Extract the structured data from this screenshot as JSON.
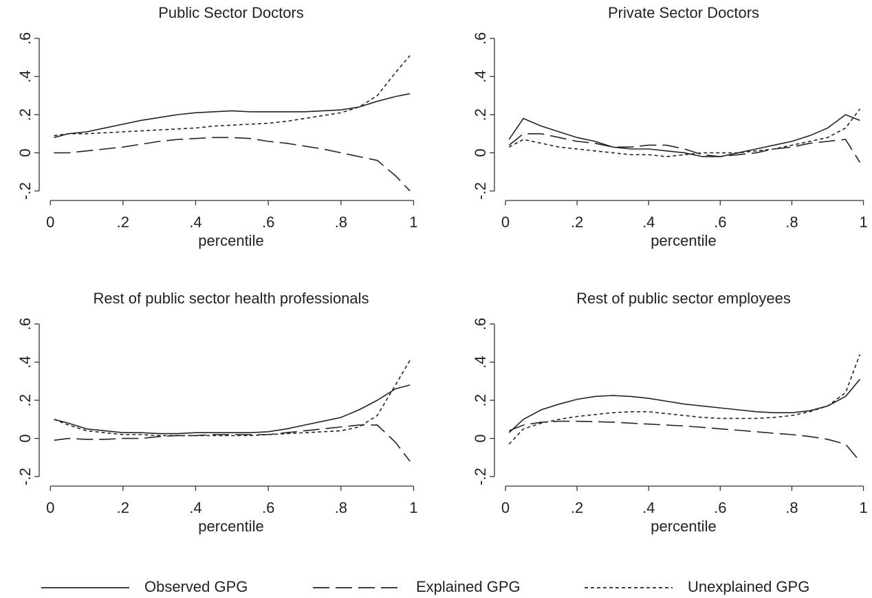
{
  "chart_data": [
    {
      "type": "line",
      "title": "Public Sector Doctors",
      "xlabel": "percentile",
      "x": [
        0.01,
        0.05,
        0.1,
        0.15,
        0.2,
        0.25,
        0.3,
        0.35,
        0.4,
        0.45,
        0.5,
        0.55,
        0.6,
        0.65,
        0.7,
        0.75,
        0.8,
        0.85,
        0.9,
        0.95,
        0.99
      ],
      "series": [
        {
          "values": [
            0.08,
            0.1,
            0.11,
            0.13,
            0.15,
            0.17,
            0.185,
            0.2,
            0.21,
            0.215,
            0.22,
            0.215,
            0.215,
            0.215,
            0.215,
            0.22,
            0.225,
            0.24,
            0.27,
            0.295,
            0.31
          ]
        },
        {
          "values": [
            0.0,
            0.0,
            0.01,
            0.02,
            0.03,
            0.045,
            0.06,
            0.07,
            0.075,
            0.08,
            0.08,
            0.075,
            0.06,
            0.05,
            0.035,
            0.02,
            0.0,
            -0.02,
            -0.04,
            -0.12,
            -0.2
          ]
        },
        {
          "values": [
            0.09,
            0.1,
            0.1,
            0.105,
            0.11,
            0.115,
            0.12,
            0.125,
            0.13,
            0.14,
            0.145,
            0.15,
            0.155,
            0.165,
            0.18,
            0.195,
            0.21,
            0.24,
            0.3,
            0.42,
            0.51
          ]
        }
      ],
      "xlim": [
        -0.025,
        1.02
      ],
      "ylim": [
        -0.25,
        0.65
      ],
      "xticks": [
        0,
        {
          "value": 0.2,
          "label": ".2"
        },
        {
          "value": 0.4,
          "label": ".4"
        },
        {
          "value": 0.6,
          "label": ".6"
        },
        {
          "value": 0.8,
          "label": ".8"
        },
        1
      ],
      "yticks": [
        {
          "value": -0.2,
          "label": "-.2"
        },
        0,
        {
          "value": 0.2,
          "label": ".2"
        },
        {
          "value": 0.4,
          "label": ".4"
        },
        {
          "value": 0.6,
          "label": ".6"
        }
      ]
    },
    {
      "type": "line",
      "title": "Private Sector Doctors",
      "xlabel": "percentile",
      "x": [
        0.01,
        0.05,
        0.1,
        0.15,
        0.2,
        0.25,
        0.3,
        0.35,
        0.4,
        0.45,
        0.5,
        0.55,
        0.6,
        0.65,
        0.7,
        0.75,
        0.8,
        0.85,
        0.9,
        0.95,
        0.99
      ],
      "series": [
        {
          "values": [
            0.07,
            0.18,
            0.14,
            0.11,
            0.08,
            0.06,
            0.03,
            0.02,
            0.02,
            0.01,
            0.0,
            -0.02,
            -0.02,
            0.0,
            0.02,
            0.04,
            0.06,
            0.09,
            0.13,
            0.2,
            0.17
          ]
        },
        {
          "values": [
            0.04,
            0.1,
            0.1,
            0.08,
            0.06,
            0.05,
            0.03,
            0.03,
            0.04,
            0.04,
            0.02,
            -0.01,
            -0.02,
            -0.01,
            0.0,
            0.02,
            0.03,
            0.05,
            0.06,
            0.07,
            -0.05
          ]
        },
        {
          "values": [
            0.03,
            0.07,
            0.05,
            0.03,
            0.02,
            0.01,
            0.0,
            -0.01,
            -0.01,
            -0.02,
            -0.01,
            0.0,
            0.0,
            0.0,
            0.01,
            0.02,
            0.04,
            0.06,
            0.08,
            0.13,
            0.23
          ]
        }
      ],
      "xlim": [
        -0.025,
        1.02
      ],
      "ylim": [
        -0.25,
        0.65
      ],
      "xticks": [
        0,
        {
          "value": 0.2,
          "label": ".2"
        },
        {
          "value": 0.4,
          "label": ".4"
        },
        {
          "value": 0.6,
          "label": ".6"
        },
        {
          "value": 0.8,
          "label": ".8"
        },
        1
      ],
      "yticks": [
        {
          "value": -0.2,
          "label": "-.2"
        },
        0,
        {
          "value": 0.2,
          "label": ".2"
        },
        {
          "value": 0.4,
          "label": ".4"
        },
        {
          "value": 0.6,
          "label": ".6"
        }
      ]
    },
    {
      "type": "line",
      "title": "Rest of public sector health professionals",
      "xlabel": "percentile",
      "x": [
        0.01,
        0.05,
        0.1,
        0.15,
        0.2,
        0.25,
        0.3,
        0.35,
        0.4,
        0.45,
        0.5,
        0.55,
        0.6,
        0.65,
        0.7,
        0.75,
        0.8,
        0.85,
        0.9,
        0.95,
        0.99
      ],
      "series": [
        {
          "values": [
            0.1,
            0.08,
            0.05,
            0.04,
            0.03,
            0.03,
            0.025,
            0.025,
            0.03,
            0.03,
            0.03,
            0.03,
            0.035,
            0.05,
            0.07,
            0.09,
            0.11,
            0.15,
            0.2,
            0.26,
            0.28
          ]
        },
        {
          "values": [
            -0.01,
            0.0,
            -0.005,
            -0.005,
            0.0,
            0.0,
            0.01,
            0.015,
            0.015,
            0.02,
            0.02,
            0.02,
            0.02,
            0.03,
            0.04,
            0.05,
            0.06,
            0.07,
            0.07,
            -0.02,
            -0.12
          ]
        },
        {
          "values": [
            0.1,
            0.07,
            0.04,
            0.03,
            0.02,
            0.02,
            0.015,
            0.015,
            0.015,
            0.015,
            0.015,
            0.015,
            0.02,
            0.025,
            0.03,
            0.035,
            0.04,
            0.06,
            0.12,
            0.28,
            0.41
          ]
        }
      ],
      "xlim": [
        -0.025,
        1.02
      ],
      "ylim": [
        -0.25,
        0.65
      ],
      "xticks": [
        0,
        {
          "value": 0.2,
          "label": ".2"
        },
        {
          "value": 0.4,
          "label": ".4"
        },
        {
          "value": 0.6,
          "label": ".6"
        },
        {
          "value": 0.8,
          "label": ".8"
        },
        1
      ],
      "yticks": [
        {
          "value": -0.2,
          "label": "-.2"
        },
        0,
        {
          "value": 0.2,
          "label": ".2"
        },
        {
          "value": 0.4,
          "label": ".4"
        },
        {
          "value": 0.6,
          "label": ".6"
        }
      ]
    },
    {
      "type": "line",
      "title": "Rest of public sector employees",
      "xlabel": "percentile",
      "x": [
        0.01,
        0.05,
        0.1,
        0.15,
        0.2,
        0.25,
        0.3,
        0.35,
        0.4,
        0.45,
        0.5,
        0.55,
        0.6,
        0.65,
        0.7,
        0.75,
        0.8,
        0.85,
        0.9,
        0.95,
        0.99
      ],
      "series": [
        {
          "values": [
            0.03,
            0.1,
            0.15,
            0.18,
            0.205,
            0.22,
            0.225,
            0.22,
            0.21,
            0.195,
            0.18,
            0.17,
            0.16,
            0.15,
            0.14,
            0.135,
            0.135,
            0.145,
            0.17,
            0.22,
            0.31
          ]
        },
        {
          "values": [
            0.04,
            0.07,
            0.085,
            0.09,
            0.09,
            0.088,
            0.085,
            0.08,
            0.075,
            0.07,
            0.065,
            0.058,
            0.05,
            0.043,
            0.035,
            0.027,
            0.02,
            0.01,
            -0.005,
            -0.03,
            -0.12
          ]
        },
        {
          "values": [
            -0.03,
            0.05,
            0.08,
            0.1,
            0.115,
            0.125,
            0.135,
            0.14,
            0.14,
            0.13,
            0.12,
            0.11,
            0.105,
            0.105,
            0.105,
            0.11,
            0.12,
            0.14,
            0.17,
            0.24,
            0.44
          ]
        }
      ],
      "xlim": [
        -0.025,
        1.02
      ],
      "ylim": [
        -0.25,
        0.65
      ],
      "xticks": [
        0,
        {
          "value": 0.2,
          "label": ".2"
        },
        {
          "value": 0.4,
          "label": ".4"
        },
        {
          "value": 0.6,
          "label": ".6"
        },
        {
          "value": 0.8,
          "label": ".8"
        },
        1
      ],
      "yticks": [
        {
          "value": -0.2,
          "label": "-.2"
        },
        0,
        {
          "value": 0.2,
          "label": ".2"
        },
        {
          "value": 0.4,
          "label": ".4"
        },
        {
          "value": 0.6,
          "label": ".6"
        }
      ]
    }
  ],
  "legend": [
    {
      "name": "Observed GPG",
      "style": "solid",
      "color": "#222222"
    },
    {
      "name": "Explained GPG",
      "style": "long-dash",
      "color": "#222222"
    },
    {
      "name": "Unexplained GPG",
      "style": "short-dash",
      "color": "#222222"
    }
  ]
}
